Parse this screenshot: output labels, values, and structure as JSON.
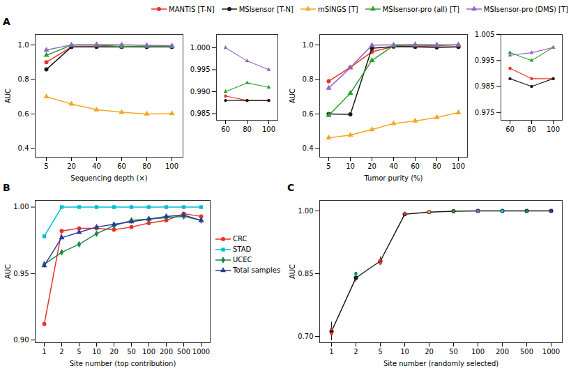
{
  "chart_data": [
    {
      "type": "line",
      "title": "A",
      "xlabel": "Sequencing depth (×)",
      "ylabel": "AUC",
      "categories": [
        5,
        20,
        40,
        60,
        80,
        100
      ],
      "ylim": [
        0.35,
        1.06
      ],
      "yticks": [
        0.4,
        0.6,
        0.8,
        {
          "value": 1.0,
          "label": "1.0"
        }
      ],
      "legend": "top",
      "series": [
        {
          "name": "MANTIS [T-N]",
          "color": "#e8312a",
          "marker": "circle",
          "values": [
            0.9,
            0.988,
            0.989,
            0.989,
            0.988,
            0.988
          ]
        },
        {
          "name": "MSIsensor [T-N]",
          "color": "#1a1a1a",
          "marker": "circle",
          "values": [
            0.858,
            0.988,
            0.988,
            0.988,
            0.988,
            0.988
          ]
        },
        {
          "name": "mSINGS [T]",
          "color": "#f5a623",
          "marker": "triangle",
          "values": [
            0.7,
            0.658,
            0.625,
            0.61,
            0.6,
            0.602
          ]
        },
        {
          "name": "MSIsensor-pro (all) [T]",
          "color": "#2ca02c",
          "marker": "triangle",
          "values": [
            0.94,
            0.998,
            0.998,
            0.99,
            0.992,
            0.991
          ]
        },
        {
          "name": "MSIsensor-pro (DMS) [T]",
          "color": "#9467bd",
          "marker": "triangle",
          "values": [
            0.97,
            1.0,
            1.002,
            1.0,
            0.997,
            0.995
          ]
        }
      ]
    },
    {
      "type": "line",
      "categories": [
        60,
        80,
        100
      ],
      "ylim": [
        0.9835,
        1.003
      ],
      "yticks": [
        0.985,
        {
          "value": 0.99,
          "label": "0.990"
        },
        0.995,
        {
          "value": 1.0,
          "label": "1.000"
        }
      ],
      "series": [
        {
          "name": "MANTIS [T-N]",
          "color": "#e8312a",
          "marker": "circle",
          "values": [
            0.989,
            0.988,
            0.988
          ]
        },
        {
          "name": "MSIsensor [T-N]",
          "color": "#1a1a1a",
          "marker": "circle",
          "values": [
            0.988,
            0.988,
            0.988
          ]
        },
        {
          "name": "MSIsensor-pro (all) [T]",
          "color": "#2ca02c",
          "marker": "triangle",
          "values": [
            0.99,
            0.992,
            0.991
          ]
        },
        {
          "name": "MSIsensor-pro (DMS) [T]",
          "color": "#9467bd",
          "marker": "triangle",
          "values": [
            1.0,
            0.997,
            0.995
          ]
        }
      ]
    },
    {
      "type": "line",
      "xlabel": "Tumor purity (%)",
      "ylabel": "AUC",
      "categories": [
        5,
        10,
        20,
        40,
        60,
        80,
        100
      ],
      "ylim": [
        0.35,
        1.06
      ],
      "yticks": [
        0.4,
        0.6,
        0.8,
        {
          "value": 1.0,
          "label": "1.0"
        }
      ],
      "series": [
        {
          "name": "MANTIS [T-N]",
          "color": "#e8312a",
          "marker": "circle",
          "values": [
            0.79,
            0.87,
            0.96,
            0.99,
            0.992,
            0.988,
            0.988
          ]
        },
        {
          "name": "MSIsensor [T-N]",
          "color": "#1a1a1a",
          "marker": "circle",
          "values": [
            0.6,
            0.598,
            0.98,
            0.99,
            0.988,
            0.985,
            0.988
          ]
        },
        {
          "name": "mSINGS [T]",
          "color": "#f5a623",
          "marker": "triangle",
          "values": [
            0.462,
            0.478,
            0.51,
            0.545,
            0.56,
            0.58,
            0.608
          ]
        },
        {
          "name": "MSIsensor-pro (all) [T]",
          "color": "#2ca02c",
          "marker": "triangle",
          "values": [
            0.592,
            0.72,
            0.91,
            0.995,
            0.998,
            0.995,
            1.0
          ]
        },
        {
          "name": "MSIsensor-pro (DMS) [T]",
          "color": "#9467bd",
          "marker": "triangle",
          "values": [
            0.75,
            0.868,
            0.998,
            1.0,
            1.002,
            1.0,
            1.0
          ]
        }
      ]
    },
    {
      "type": "line",
      "categories": [
        60,
        80,
        100
      ],
      "ylim": [
        0.972,
        1.005
      ],
      "yticks": [
        0.975,
        0.985,
        0.995,
        1.005
      ],
      "series": [
        {
          "name": "MANTIS [T-N]",
          "color": "#e8312a",
          "marker": "circle",
          "values": [
            0.992,
            0.988,
            0.988
          ]
        },
        {
          "name": "MSIsensor [T-N]",
          "color": "#1a1a1a",
          "marker": "circle",
          "values": [
            0.988,
            0.985,
            0.988
          ]
        },
        {
          "name": "MSIsensor-pro (all) [T]",
          "color": "#2ca02c",
          "marker": "triangle",
          "values": [
            0.998,
            0.995,
            1.0
          ]
        },
        {
          "name": "MSIsensor-pro (DMS) [T]",
          "color": "#9467bd",
          "marker": "triangle",
          "values": [
            0.997,
            0.998,
            1.0
          ]
        }
      ]
    },
    {
      "type": "line",
      "title": "B",
      "xlabel": "Site number (top contribution)",
      "ylabel": "AUC",
      "categories": [
        1,
        2,
        5,
        10,
        20,
        50,
        100,
        200,
        500,
        1000
      ],
      "ylim": [
        0.898,
        1.005
      ],
      "yticks": [
        {
          "value": 0.9,
          "label": "0.90"
        },
        0.95,
        {
          "value": 1.0,
          "label": "1.00"
        }
      ],
      "legend": "right",
      "series": [
        {
          "name": "CRC",
          "color": "#e8312a",
          "marker": "circle",
          "values": [
            0.912,
            0.982,
            0.984,
            0.984,
            0.983,
            0.985,
            0.988,
            0.99,
            0.995,
            0.993
          ]
        },
        {
          "name": "STAD",
          "color": "#00bcd4",
          "marker": "square",
          "values": [
            0.978,
            1.0,
            1.0,
            1.0,
            1.0,
            1.0,
            1.0,
            1.0,
            1.0,
            1.0
          ]
        },
        {
          "name": "UCEC",
          "color": "#1a8a4a",
          "marker": "diamond",
          "values": [
            0.957,
            0.966,
            0.972,
            0.98,
            0.986,
            0.99,
            0.991,
            0.992,
            0.993,
            0.99
          ]
        },
        {
          "name": "Total samples",
          "color": "#2a3a9a",
          "marker": "triangle",
          "values": [
            0.956,
            0.977,
            0.981,
            0.985,
            0.987,
            0.989,
            0.991,
            0.993,
            0.994,
            0.99
          ]
        }
      ]
    },
    {
      "type": "line",
      "title": "C",
      "xlabel": "Site number (randomly selected)",
      "ylabel": "AUC",
      "categories": [
        1,
        2,
        5,
        10,
        20,
        50,
        100,
        200,
        500,
        1000
      ],
      "ylim": [
        0.685,
        1.025
      ],
      "yticks": [
        {
          "value": 0.7,
          "label": "0.70"
        },
        0.85,
        {
          "value": 1.0,
          "label": "1.00"
        }
      ],
      "series": [
        {
          "type": "line",
          "color": "#1a1a1a",
          "marker": "circle",
          "values": [
            0.712,
            0.84,
            0.88,
            0.992,
            0.997,
            0.999,
            1.0,
            1.0,
            1.0,
            1.0
          ],
          "yerr": [
            0.022,
            0.01,
            0.01,
            0.005,
            0.003,
            0.002,
            0.001,
            0.001,
            0.001,
            0.001
          ]
        },
        {
          "type": "scatter",
          "marker": "circle",
          "values": [
            0.718,
            0.848,
            0.882,
            0.993,
            0.997,
            0.999,
            1.0,
            1.0,
            1.0,
            1.0
          ],
          "colors": [
            "#e8312a",
            "#00bcd4",
            "#e8312a",
            "#e8312a",
            "#f5a623",
            "#2ca02c",
            "#9467bd",
            "#00bcd4",
            "#1a8a4a",
            "#2a3a9a"
          ]
        },
        {
          "type": "scatter",
          "marker": "circle",
          "values": [
            0.706,
            0.851,
            0.875,
            null,
            null,
            null,
            null,
            null,
            null,
            null
          ],
          "colors": [
            "#e8312a",
            "#1a8a4a",
            "#e8312a",
            null,
            null,
            null,
            null,
            null,
            null,
            null
          ]
        }
      ]
    }
  ]
}
